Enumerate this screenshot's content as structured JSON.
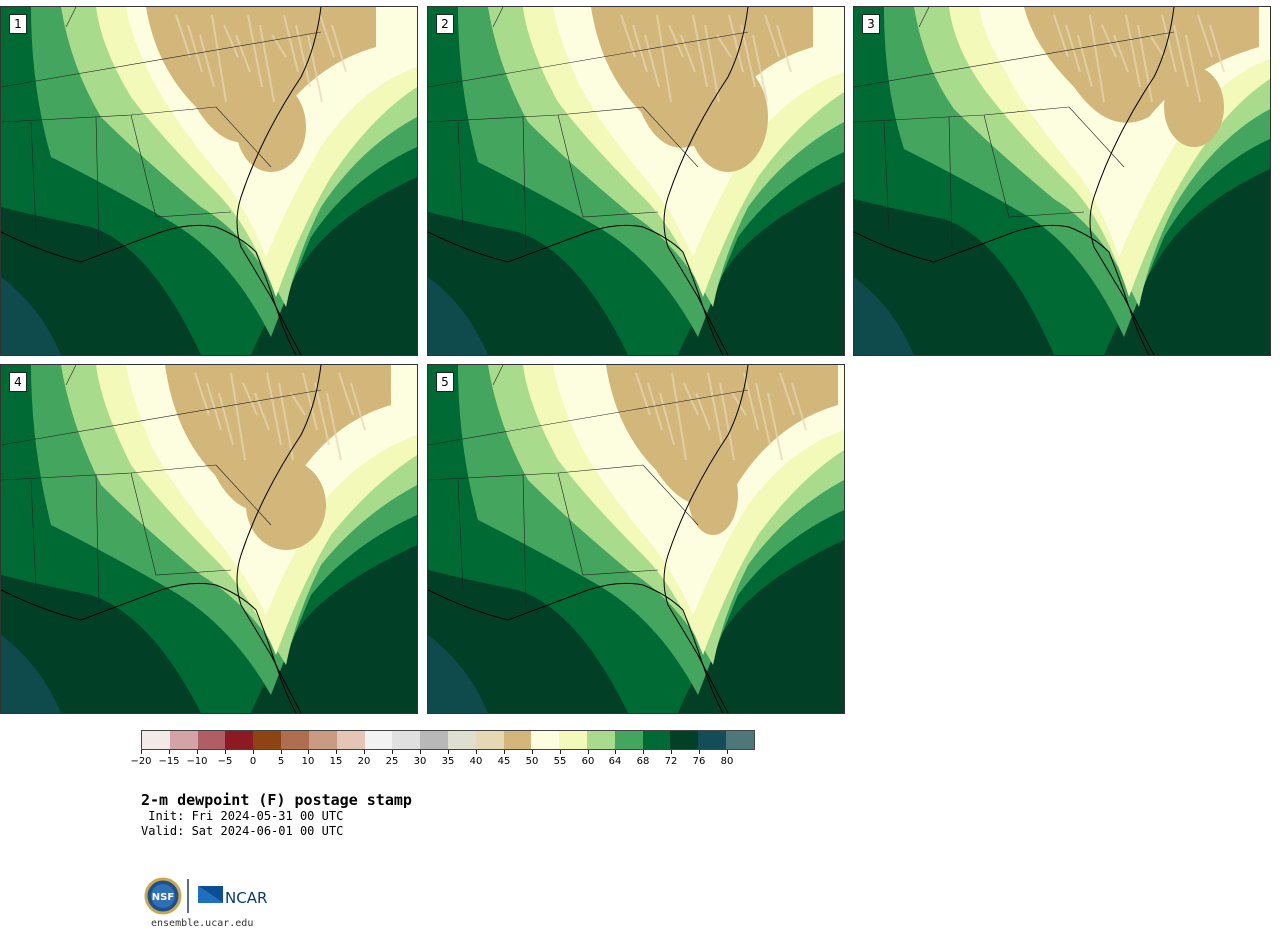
{
  "panels": [
    {
      "label": "1"
    },
    {
      "label": "2"
    },
    {
      "label": "3"
    },
    {
      "label": "4"
    },
    {
      "label": "5"
    }
  ],
  "colorbar": {
    "colors": [
      "#f4e9e9",
      "#d3a3a5",
      "#b05d63",
      "#8c1a23",
      "#8e4313",
      "#ad6f4d",
      "#c89b82",
      "#e3c6b6",
      "#f2f2f2",
      "#e0e0e0",
      "#b8b8b8",
      "#dfdfcf",
      "#e6d7b5",
      "#d3b77a",
      "#fdfde0",
      "#f3f9b8",
      "#a8dc8c",
      "#44a55e",
      "#006a34",
      "#013f26",
      "#134d57",
      "#4d7779"
    ],
    "tick_labels": [
      "−20",
      "−15",
      "−10",
      "−5",
      "0",
      "5",
      "10",
      "15",
      "20",
      "25",
      "30",
      "35",
      "40",
      "45",
      "50",
      "55",
      "60",
      "64",
      "68",
      "72",
      "76",
      "80"
    ]
  },
  "legend_colors": {
    "deep": "#013f26",
    "dark": "#006a34",
    "mid": "#44a55e",
    "light": "#a8dc8c",
    "pale": "#f3f9b8",
    "cream": "#fdfde0",
    "tan": "#d3b77a",
    "ocean": "#134d57"
  },
  "text": {
    "title": "2-m dewpoint (F) postage stamp",
    "init": " Init: Fri 2024-05-31 00 UTC",
    "valid": "Valid: Sat 2024-06-01 00 UTC",
    "url": "ensemble.ucar.edu"
  },
  "logos": {
    "nsf": "NSF",
    "ncar": "NCAR"
  }
}
